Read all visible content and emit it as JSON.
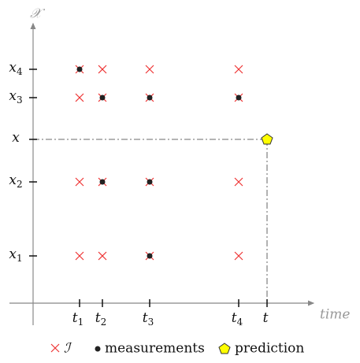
{
  "axes": {
    "y_label": "𝒳",
    "x_label": "time"
  },
  "x_ticks": [
    {
      "base": "t",
      "sub": "1"
    },
    {
      "base": "t",
      "sub": "2"
    },
    {
      "base": "t",
      "sub": "3"
    },
    {
      "base": "t",
      "sub": "4"
    },
    {
      "base": "t",
      "sub": ""
    }
  ],
  "y_ticks": [
    {
      "base": "x",
      "sub": "4"
    },
    {
      "base": "x",
      "sub": "3"
    },
    {
      "base": "x",
      "sub": ""
    },
    {
      "base": "x",
      "sub": "2"
    },
    {
      "base": "x",
      "sub": "1"
    }
  ],
  "grid": [
    {
      "row": 0,
      "measured": [
        true,
        false,
        false,
        false
      ]
    },
    {
      "row": 1,
      "measured": [
        false,
        true,
        true,
        true
      ]
    },
    {
      "row": 3,
      "measured": [
        false,
        true,
        true,
        false
      ]
    },
    {
      "row": 4,
      "measured": [
        false,
        false,
        true,
        false
      ]
    }
  ],
  "legend": {
    "cross": "ℐ",
    "dot": "measurements",
    "star": "prediction"
  }
}
